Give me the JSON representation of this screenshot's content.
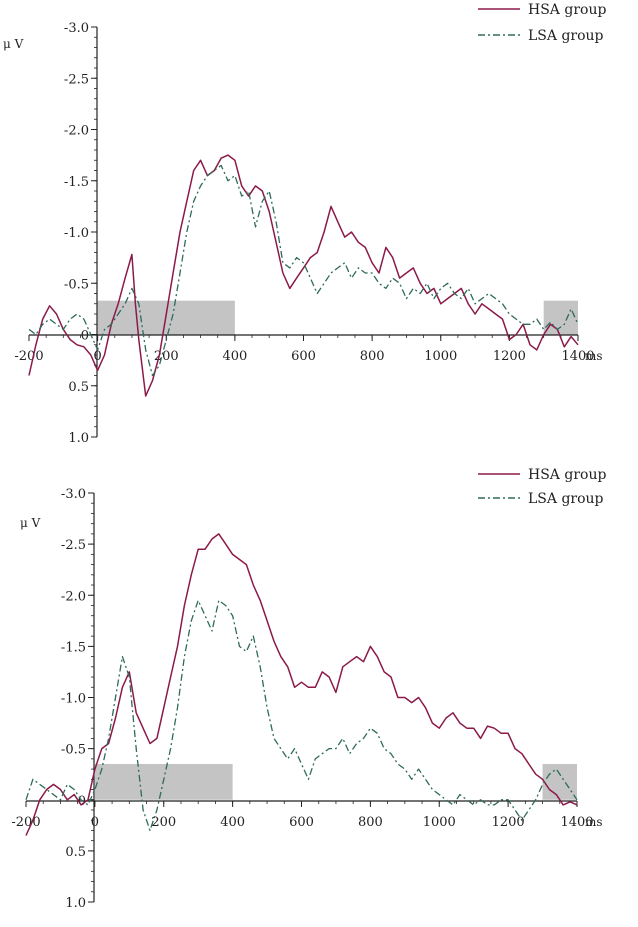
{
  "colors": {
    "hsa": "#8b1a4a",
    "lsa": "#2e6b58",
    "shade": "#c4c4c4",
    "axis": "#222222"
  },
  "chart_data": [
    {
      "type": "line",
      "y_inverted": true,
      "ylabel": "μ V",
      "x_unit": "ms",
      "xlim": [
        -200,
        1400
      ],
      "ylim": [
        -3.0,
        1.0
      ],
      "x_ticks": [
        "-200",
        "0",
        "200",
        "400",
        "600",
        "800",
        "1000",
        "1200",
        "1400"
      ],
      "x_tick_values": [
        -200,
        0,
        200,
        400,
        600,
        800,
        1000,
        1200,
        1400
      ],
      "y_ticks": [
        "-3.0",
        "-2.5",
        "-2.0",
        "-1.5",
        "-1.0",
        "-0.5",
        "0",
        "0.5",
        "1.0"
      ],
      "y_tick_values": [
        -3.0,
        -2.5,
        -2.0,
        -1.5,
        -1.0,
        -0.5,
        0,
        0.5,
        1.0
      ],
      "shaded_windows": [
        {
          "x0": 0,
          "x1": 400,
          "y0": 0,
          "y1": -0.33
        },
        {
          "x0": 1300,
          "x1": 1400,
          "y0": 0,
          "y1": -0.33
        }
      ],
      "legend": [
        "HSA group",
        "LSA group"
      ],
      "legend_position": "top-right",
      "series": [
        {
          "name": "HSA group",
          "key": "hsa",
          "style": "solid",
          "x": [
            -200,
            -180,
            -160,
            -140,
            -120,
            -100,
            -80,
            -60,
            -40,
            -20,
            0,
            20,
            40,
            60,
            80,
            100,
            110,
            120,
            140,
            160,
            180,
            200,
            220,
            240,
            260,
            280,
            300,
            320,
            340,
            360,
            380,
            400,
            420,
            440,
            460,
            480,
            500,
            520,
            540,
            560,
            580,
            600,
            620,
            640,
            660,
            680,
            700,
            720,
            740,
            760,
            780,
            800,
            820,
            840,
            860,
            880,
            900,
            920,
            940,
            960,
            980,
            1000,
            1020,
            1040,
            1060,
            1080,
            1100,
            1120,
            1140,
            1160,
            1180,
            1200,
            1220,
            1240,
            1260,
            1280,
            1300,
            1320,
            1340,
            1360,
            1380,
            1400
          ],
          "y": [
            0.4,
            0.1,
            -0.15,
            -0.28,
            -0.2,
            -0.05,
            0.05,
            0.1,
            0.12,
            0.2,
            0.35,
            0.2,
            -0.1,
            -0.3,
            -0.55,
            -0.78,
            -0.3,
            0.05,
            0.6,
            0.45,
            0.2,
            -0.2,
            -0.6,
            -1.0,
            -1.3,
            -1.6,
            -1.7,
            -1.55,
            -1.6,
            -1.72,
            -1.75,
            -1.7,
            -1.45,
            -1.35,
            -1.45,
            -1.4,
            -1.2,
            -0.9,
            -0.6,
            -0.45,
            -0.55,
            -0.65,
            -0.75,
            -0.8,
            -1.0,
            -1.25,
            -1.1,
            -0.95,
            -1.0,
            -0.9,
            -0.85,
            -0.7,
            -0.6,
            -0.85,
            -0.75,
            -0.55,
            -0.6,
            -0.65,
            -0.5,
            -0.4,
            -0.45,
            -0.3,
            -0.35,
            -0.4,
            -0.45,
            -0.3,
            -0.2,
            -0.3,
            -0.25,
            -0.2,
            -0.15,
            0.05,
            0.0,
            -0.1,
            0.1,
            0.15,
            0.0,
            -0.1,
            -0.05,
            0.12,
            0.02,
            0.1
          ]
        },
        {
          "name": "LSA group",
          "key": "lsa",
          "style": "dashdot",
          "x": [
            -200,
            -180,
            -160,
            -140,
            -120,
            -100,
            -80,
            -60,
            -40,
            -20,
            0,
            20,
            40,
            60,
            80,
            100,
            120,
            140,
            160,
            180,
            200,
            220,
            240,
            260,
            280,
            300,
            320,
            340,
            360,
            380,
            400,
            420,
            440,
            460,
            480,
            500,
            520,
            540,
            560,
            580,
            600,
            620,
            640,
            660,
            680,
            700,
            720,
            740,
            760,
            780,
            800,
            820,
            840,
            860,
            880,
            900,
            920,
            940,
            960,
            980,
            1000,
            1020,
            1040,
            1060,
            1080,
            1100,
            1120,
            1140,
            1160,
            1180,
            1200,
            1220,
            1240,
            1260,
            1280,
            1300,
            1320,
            1340,
            1360,
            1380,
            1400
          ],
          "y": [
            -0.05,
            0.0,
            -0.1,
            -0.15,
            -0.1,
            -0.05,
            -0.15,
            -0.2,
            -0.15,
            0.0,
            0.15,
            -0.05,
            -0.1,
            -0.2,
            -0.3,
            -0.45,
            -0.3,
            0.15,
            0.4,
            0.3,
            0.05,
            -0.2,
            -0.6,
            -1.0,
            -1.3,
            -1.45,
            -1.55,
            -1.6,
            -1.65,
            -1.5,
            -1.55,
            -1.35,
            -1.4,
            -1.05,
            -1.3,
            -1.4,
            -1.1,
            -0.7,
            -0.65,
            -0.75,
            -0.7,
            -0.55,
            -0.4,
            -0.5,
            -0.6,
            -0.65,
            -0.7,
            -0.55,
            -0.65,
            -0.6,
            -0.6,
            -0.5,
            -0.45,
            -0.55,
            -0.5,
            -0.35,
            -0.45,
            -0.4,
            -0.5,
            -0.35,
            -0.45,
            -0.5,
            -0.4,
            -0.35,
            -0.45,
            -0.3,
            -0.35,
            -0.4,
            -0.35,
            -0.3,
            -0.2,
            -0.15,
            -0.1,
            -0.1,
            -0.15,
            -0.05,
            -0.12,
            -0.05,
            -0.1,
            -0.25,
            -0.1
          ]
        }
      ]
    },
    {
      "type": "line",
      "y_inverted": true,
      "ylabel": "μ V",
      "x_unit": "ms",
      "xlim": [
        -200,
        1400
      ],
      "ylim": [
        -3.0,
        1.0
      ],
      "x_ticks": [
        "-200",
        "0",
        "200",
        "400",
        "600",
        "800",
        "1000",
        "1200",
        "1400"
      ],
      "x_tick_values": [
        -200,
        0,
        200,
        400,
        600,
        800,
        1000,
        1200,
        1400
      ],
      "y_ticks": [
        "-3.0",
        "-2.5",
        "-2.0",
        "-1.5",
        "-1.0",
        "-0.5",
        "0",
        "0.5",
        "1.0"
      ],
      "y_tick_values": [
        -3.0,
        -2.5,
        -2.0,
        -1.5,
        -1.0,
        -0.5,
        0,
        0.5,
        1.0
      ],
      "shaded_windows": [
        {
          "x0": 0,
          "x1": 400,
          "y0": 0,
          "y1": -0.35
        },
        {
          "x0": 1300,
          "x1": 1400,
          "y0": 0,
          "y1": -0.35
        }
      ],
      "legend": [
        "HSA group",
        "LSA group"
      ],
      "legend_position": "top-right",
      "series": [
        {
          "name": "HSA group",
          "key": "hsa",
          "style": "solid",
          "x": [
            -200,
            -180,
            -160,
            -140,
            -120,
            -100,
            -80,
            -60,
            -40,
            -20,
            0,
            20,
            40,
            60,
            80,
            100,
            120,
            140,
            160,
            180,
            200,
            220,
            240,
            260,
            280,
            300,
            320,
            340,
            360,
            380,
            400,
            420,
            440,
            460,
            480,
            500,
            520,
            540,
            560,
            580,
            600,
            620,
            640,
            660,
            680,
            700,
            720,
            740,
            760,
            780,
            800,
            820,
            840,
            860,
            880,
            900,
            920,
            940,
            960,
            980,
            1000,
            1020,
            1040,
            1060,
            1080,
            1100,
            1120,
            1140,
            1160,
            1180,
            1200,
            1220,
            1240,
            1260,
            1280,
            1300,
            1320,
            1340,
            1360,
            1380,
            1400
          ],
          "y": [
            0.35,
            0.2,
            0.0,
            -0.1,
            -0.15,
            -0.1,
            0.0,
            -0.05,
            0.05,
            0.0,
            -0.3,
            -0.5,
            -0.55,
            -0.8,
            -1.1,
            -1.25,
            -0.85,
            -0.7,
            -0.55,
            -0.6,
            -0.9,
            -1.2,
            -1.5,
            -1.9,
            -2.2,
            -2.45,
            -2.45,
            -2.55,
            -2.6,
            -2.5,
            -2.4,
            -2.35,
            -2.3,
            -2.1,
            -1.95,
            -1.75,
            -1.55,
            -1.4,
            -1.3,
            -1.1,
            -1.15,
            -1.1,
            -1.1,
            -1.25,
            -1.2,
            -1.05,
            -1.3,
            -1.35,
            -1.4,
            -1.35,
            -1.5,
            -1.4,
            -1.25,
            -1.2,
            -1.0,
            -1.0,
            -0.95,
            -1.0,
            -0.9,
            -0.75,
            -0.7,
            -0.8,
            -0.85,
            -0.75,
            -0.7,
            -0.7,
            -0.6,
            -0.72,
            -0.7,
            -0.65,
            -0.65,
            -0.5,
            -0.45,
            -0.35,
            -0.25,
            -0.2,
            -0.1,
            -0.05,
            0.05,
            0.02,
            0.05
          ]
        },
        {
          "name": "LSA group",
          "key": "lsa",
          "style": "dashdot",
          "x": [
            -200,
            -180,
            -160,
            -140,
            -120,
            -100,
            -80,
            -60,
            -40,
            -20,
            0,
            20,
            40,
            60,
            80,
            100,
            120,
            140,
            160,
            180,
            200,
            220,
            240,
            260,
            280,
            300,
            320,
            340,
            360,
            380,
            400,
            420,
            440,
            460,
            480,
            500,
            520,
            540,
            560,
            580,
            600,
            620,
            640,
            660,
            680,
            700,
            720,
            740,
            760,
            780,
            800,
            820,
            840,
            860,
            880,
            900,
            920,
            940,
            960,
            980,
            1000,
            1020,
            1040,
            1060,
            1080,
            1100,
            1120,
            1140,
            1160,
            1180,
            1200,
            1220,
            1240,
            1260,
            1280,
            1300,
            1320,
            1340,
            1360,
            1380,
            1400
          ],
          "y": [
            0.0,
            -0.2,
            -0.15,
            -0.1,
            -0.05,
            0.0,
            -0.15,
            -0.1,
            0.0,
            0.05,
            -0.1,
            -0.3,
            -0.6,
            -1.0,
            -1.4,
            -1.2,
            -0.5,
            0.1,
            0.3,
            0.1,
            -0.2,
            -0.5,
            -0.9,
            -1.4,
            -1.75,
            -1.95,
            -1.8,
            -1.65,
            -1.95,
            -1.9,
            -1.8,
            -1.5,
            -1.45,
            -1.6,
            -1.3,
            -0.9,
            -0.6,
            -0.5,
            -0.4,
            -0.5,
            -0.35,
            -0.2,
            -0.4,
            -0.45,
            -0.5,
            -0.5,
            -0.6,
            -0.45,
            -0.55,
            -0.6,
            -0.7,
            -0.65,
            -0.5,
            -0.45,
            -0.35,
            -0.3,
            -0.2,
            -0.3,
            -0.2,
            -0.1,
            -0.05,
            0.0,
            0.05,
            -0.05,
            0.0,
            0.05,
            0.0,
            0.05,
            0.05,
            0.0,
            0.0,
            0.1,
            0.2,
            0.1,
            0.0,
            -0.15,
            -0.25,
            -0.3,
            -0.2,
            -0.1,
            0.0
          ]
        }
      ]
    }
  ]
}
